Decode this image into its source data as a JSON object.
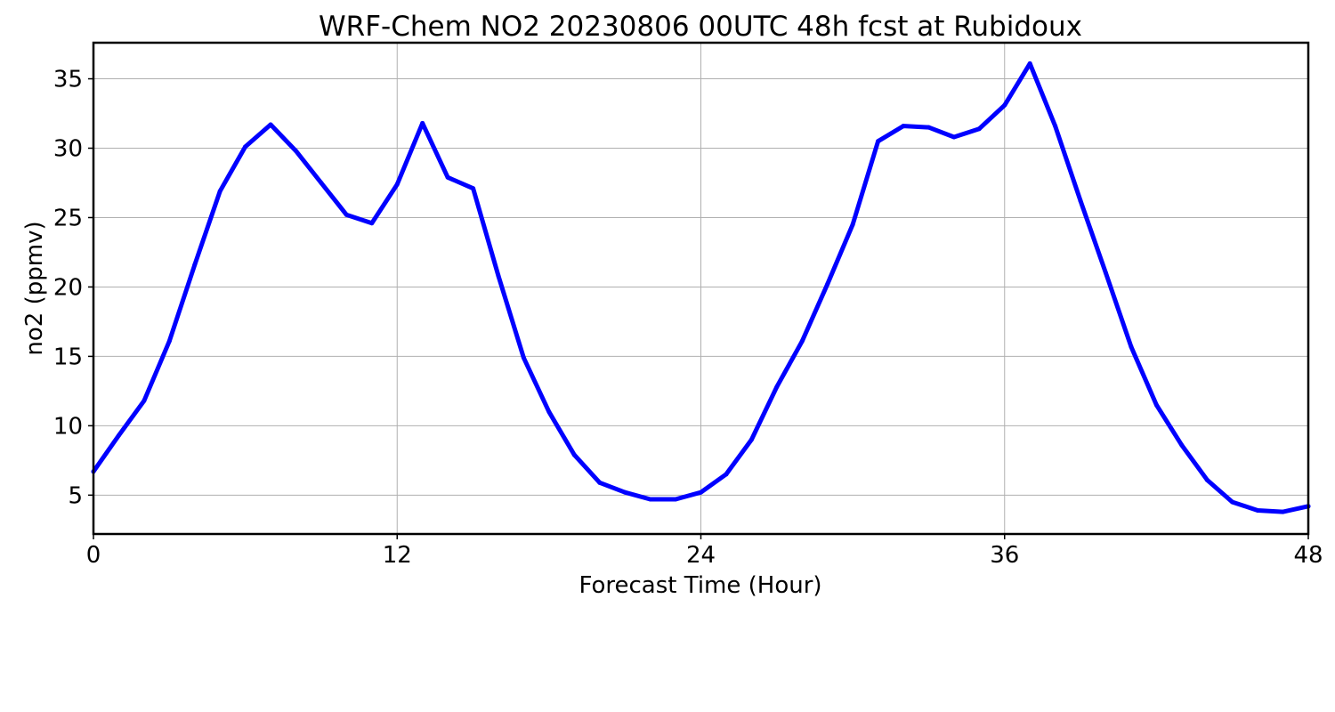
{
  "chart_data": {
    "type": "line",
    "title": "WRF-Chem NO2  20230806 00UTC 48h fcst at Rubidoux",
    "xlabel": "Forecast Time (Hour)",
    "ylabel": "no2  (ppmv)",
    "xlim": [
      0,
      48
    ],
    "ylim": [
      2.2,
      37.6
    ],
    "xticks": [
      0,
      12,
      24,
      36,
      48
    ],
    "yticks": [
      5,
      10,
      15,
      20,
      25,
      30,
      35
    ],
    "grid": true,
    "line_color": "#0000ff",
    "x": [
      0,
      1,
      2,
      3,
      4,
      5,
      6,
      7,
      8,
      9,
      10,
      11,
      12,
      13,
      14,
      15,
      16,
      17,
      18,
      19,
      20,
      21,
      22,
      23,
      24,
      25,
      26,
      27,
      28,
      29,
      30,
      31,
      32,
      33,
      34,
      35,
      36,
      37,
      38,
      39,
      40,
      41,
      42,
      43,
      44,
      45,
      46,
      47,
      48
    ],
    "values": [
      6.7,
      9.3,
      11.8,
      16.1,
      21.6,
      26.9,
      30.1,
      31.7,
      29.8,
      27.5,
      25.2,
      24.6,
      27.4,
      31.8,
      27.9,
      27.1,
      20.8,
      14.9,
      11.0,
      7.9,
      5.9,
      5.2,
      4.7,
      4.7,
      5.2,
      6.5,
      9.0,
      12.8,
      16.1,
      20.2,
      24.5,
      30.5,
      31.6,
      31.5,
      30.8,
      31.4,
      33.1,
      36.1,
      31.6,
      26.2,
      21.0,
      15.7,
      11.5,
      8.6,
      6.1,
      4.5,
      3.9,
      3.8,
      4.2
    ]
  }
}
